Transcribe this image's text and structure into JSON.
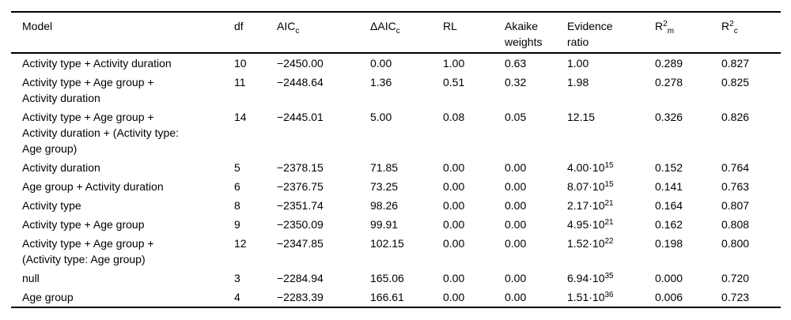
{
  "page": {
    "background_color": "#ffffff",
    "text_color": "#000000",
    "rule_color": "#000000"
  },
  "table": {
    "columns": [
      {
        "key": "model",
        "label": "Model"
      },
      {
        "key": "df",
        "label": "df"
      },
      {
        "key": "aicc",
        "label": "AIC",
        "sub": "c"
      },
      {
        "key": "delta_aicc",
        "label": "ΔAIC",
        "sub": "c"
      },
      {
        "key": "rl",
        "label": "RL"
      },
      {
        "key": "akaike_weights",
        "label": "Akaike\nweights"
      },
      {
        "key": "evidence_ratio",
        "label": "Evidence\nratio"
      },
      {
        "key": "r2_marginal",
        "label": "R",
        "sup": "2",
        "sub": "m"
      },
      {
        "key": "r2_conditional",
        "label": "R",
        "sup": "2",
        "sub": "c"
      }
    ],
    "rows": [
      {
        "model": "Activity type + Activity duration",
        "df": "10",
        "aicc": "−2450.00",
        "delta_aicc": "0.00",
        "rl": "1.00",
        "akaike_weights": "0.63",
        "evidence_ratio": "1.00",
        "r2_marginal": "0.289",
        "r2_conditional": "0.827"
      },
      {
        "model": "Activity type + Age group +\nActivity duration",
        "df": "11",
        "aicc": "−2448.64",
        "delta_aicc": "1.36",
        "rl": "0.51",
        "akaike_weights": "0.32",
        "evidence_ratio": "1.98",
        "r2_marginal": "0.278",
        "r2_conditional": "0.825"
      },
      {
        "model": "Activity type + Age group +\nActivity duration + (Activity type:\nAge group)",
        "df": "14",
        "aicc": "−2445.01",
        "delta_aicc": "5.00",
        "rl": "0.08",
        "akaike_weights": "0.05",
        "evidence_ratio": "12.15",
        "r2_marginal": "0.326",
        "r2_conditional": "0.826"
      },
      {
        "model": "Activity duration",
        "df": "5",
        "aicc": "−2378.15",
        "delta_aicc": "71.85",
        "rl": "0.00",
        "akaike_weights": "0.00",
        "evidence_ratio": {
          "base": "4.00·10",
          "sup": "15"
        },
        "r2_marginal": "0.152",
        "r2_conditional": "0.764"
      },
      {
        "model": "Age group + Activity duration",
        "df": "6",
        "aicc": "−2376.75",
        "delta_aicc": "73.25",
        "rl": "0.00",
        "akaike_weights": "0.00",
        "evidence_ratio": {
          "base": "8.07·10",
          "sup": "15"
        },
        "r2_marginal": "0.141",
        "r2_conditional": "0.763"
      },
      {
        "model": "Activity type",
        "df": "8",
        "aicc": "−2351.74",
        "delta_aicc": "98.26",
        "rl": "0.00",
        "akaike_weights": "0.00",
        "evidence_ratio": {
          "base": "2.17·10",
          "sup": "21"
        },
        "r2_marginal": "0.164",
        "r2_conditional": "0.807"
      },
      {
        "model": "Activity type + Age group",
        "df": "9",
        "aicc": "−2350.09",
        "delta_aicc": "99.91",
        "rl": "0.00",
        "akaike_weights": "0.00",
        "evidence_ratio": {
          "base": "4.95·10",
          "sup": "21"
        },
        "r2_marginal": "0.162",
        "r2_conditional": "0.808"
      },
      {
        "model": "Activity type + Age group +\n(Activity type: Age group)",
        "df": "12",
        "aicc": "−2347.85",
        "delta_aicc": "102.15",
        "rl": "0.00",
        "akaike_weights": "0.00",
        "evidence_ratio": {
          "base": "1.52·10",
          "sup": "22"
        },
        "r2_marginal": "0.198",
        "r2_conditional": "0.800"
      },
      {
        "model": "null",
        "df": "3",
        "aicc": "−2284.94",
        "delta_aicc": "165.06",
        "rl": "0.00",
        "akaike_weights": "0.00",
        "evidence_ratio": {
          "base": "6.94·10",
          "sup": "35"
        },
        "r2_marginal": "0.000",
        "r2_conditional": "0.720"
      },
      {
        "model": "Age group",
        "df": "4",
        "aicc": "−2283.39",
        "delta_aicc": "166.61",
        "rl": "0.00",
        "akaike_weights": "0.00",
        "evidence_ratio": {
          "base": "1.51·10",
          "sup": "36"
        },
        "r2_marginal": "0.006",
        "r2_conditional": "0.723"
      }
    ]
  }
}
